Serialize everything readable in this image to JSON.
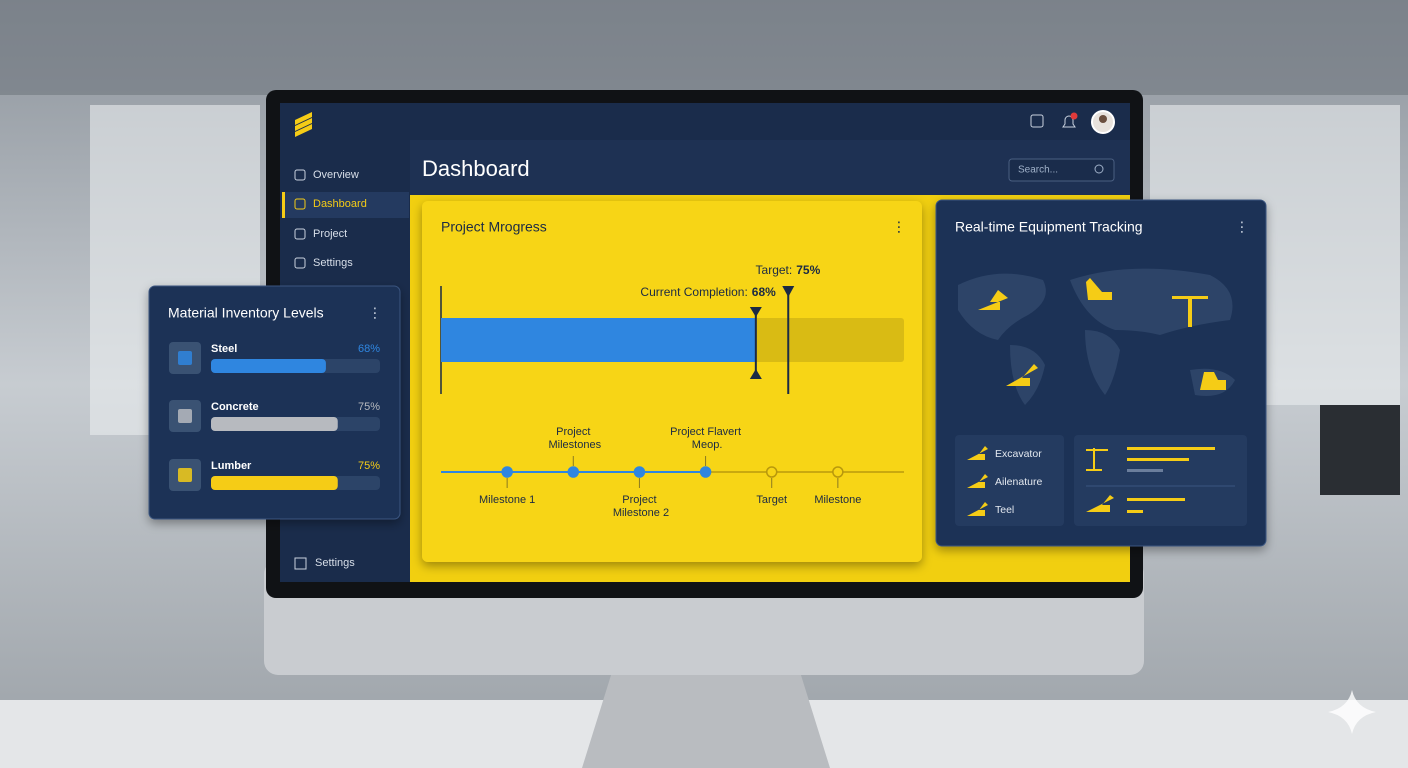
{
  "sidebar": {
    "nav": [
      "Overview",
      "Dashboard",
      "Project",
      "Settings"
    ],
    "active": 1,
    "footer": "Settings"
  },
  "header": {
    "title": "Dashboard",
    "search_placeholder": "Search..."
  },
  "project_progress": {
    "title": "Project Mrogress",
    "scale": [
      0,
      100
    ],
    "current": {
      "label": "Current Completion:",
      "value": 68,
      "value_label": "68%"
    },
    "target": {
      "label": "Target:",
      "value": 75,
      "value_label": "75%"
    },
    "milestones": [
      {
        "label": "Milestone 1",
        "position": "below",
        "status": "done"
      },
      {
        "label": "Project Milestones",
        "position": "above",
        "status": "done"
      },
      {
        "label": "Project Milestone 2",
        "position": "below",
        "status": "done"
      },
      {
        "label": "Project Flavert Meop.",
        "position": "above",
        "status": "done"
      },
      {
        "label": "Target",
        "position": "below",
        "status": "pending"
      },
      {
        "label": "Milestone",
        "position": "below",
        "status": "pending"
      }
    ]
  },
  "material_inventory": {
    "title": "Material Inventory Levels",
    "scale": [
      0,
      100
    ],
    "items": [
      {
        "name": "Steel",
        "value": 68,
        "value_label": "68%",
        "color": "#2f86e0"
      },
      {
        "name": "Concrete",
        "value": 75,
        "value_label": "75%",
        "color": "#b7babf"
      },
      {
        "name": "Lumber",
        "value": 75,
        "value_label": "75%",
        "color": "#f5cc16"
      }
    ]
  },
  "equipment_tracking": {
    "title": "Real-time Equipment Tracking",
    "legend": [
      "Excavator",
      "Ailenature",
      "Teel"
    ]
  }
}
